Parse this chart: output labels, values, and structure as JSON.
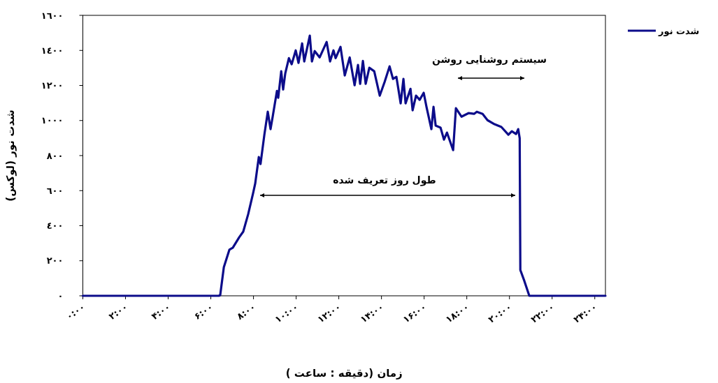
{
  "chart_data": {
    "type": "line",
    "xlabel": "زمان (دقیقه : ساعت )",
    "ylabel": "شدت نور (لوکس)",
    "xlim": [
      0,
      24.5
    ],
    "ylim": [
      0,
      1600
    ],
    "xticks": [
      {
        "value": 0,
        "label": "۰:۰۰"
      },
      {
        "value": 2,
        "label": "۲:۰۰"
      },
      {
        "value": 4,
        "label": "۴:۰۰"
      },
      {
        "value": 6,
        "label": "۶:۰۰"
      },
      {
        "value": 8,
        "label": "۸:۰۰"
      },
      {
        "value": 10,
        "label": "۱۰:۰۰"
      },
      {
        "value": 12,
        "label": "۱۲:۰۰"
      },
      {
        "value": 14,
        "label": "۱۴:۰۰"
      },
      {
        "value": 16,
        "label": "۱۶:۰۰"
      },
      {
        "value": 18,
        "label": "۱۸:۰۰"
      },
      {
        "value": 20,
        "label": "۲۰:۰۰"
      },
      {
        "value": 22,
        "label": "۲۲:۰۰"
      },
      {
        "value": 24,
        "label": "۲۴:۰۰"
      }
    ],
    "yticks": [
      {
        "value": 0,
        "label": "٠"
      },
      {
        "value": 200,
        "label": "٢٠٠"
      },
      {
        "value": 400,
        "label": "٤٠٠"
      },
      {
        "value": 600,
        "label": "٦٠٠"
      },
      {
        "value": 800,
        "label": "٨٠٠"
      },
      {
        "value": 1000,
        "label": "١٠٠٠"
      },
      {
        "value": 1200,
        "label": "١٢٠٠"
      },
      {
        "value": 1400,
        "label": "١٤٠٠"
      },
      {
        "value": 1600,
        "label": "١٦٠٠"
      }
    ],
    "grid": false,
    "legend": "top right",
    "marker": "none",
    "line_style": "solid",
    "annotations": [
      "طول روز تعریف شده",
      "سیستم روشنایی روشن"
    ],
    "series": [
      {
        "name": "شدت نور",
        "color": "#0c0c8a",
        "x": [
          0,
          6.38,
          6.44,
          6.61,
          6.87,
          7.03,
          7.33,
          7.52,
          7.75,
          7.98,
          8.08,
          8.25,
          8.33,
          8.51,
          8.67,
          8.8,
          8.9,
          9.1,
          9.16,
          9.3,
          9.39,
          9.49,
          9.66,
          9.79,
          9.98,
          10.11,
          10.28,
          10.38,
          10.64,
          10.74,
          10.87,
          11.1,
          11.43,
          11.59,
          11.75,
          11.85,
          12.08,
          12.28,
          12.51,
          12.74,
          12.9,
          13.0,
          13.13,
          13.26,
          13.43,
          13.66,
          13.92,
          14.15,
          14.38,
          14.54,
          14.7,
          14.9,
          15.03,
          15.13,
          15.36,
          15.46,
          15.62,
          15.79,
          15.98,
          16.11,
          16.34,
          16.44,
          16.54,
          16.77,
          16.93,
          17.07,
          17.36,
          17.49,
          17.75,
          18.08,
          18.34,
          18.47,
          18.74,
          18.97,
          19.3,
          19.62,
          19.95,
          20.11,
          20.31,
          20.41,
          20.48,
          20.51,
          20.7,
          20.93,
          24.5
        ],
        "values": [
          0,
          0,
          4,
          163,
          263,
          274,
          334,
          366,
          465,
          585,
          640,
          792,
          752,
          919,
          1050,
          951,
          1022,
          1169,
          1130,
          1281,
          1177,
          1269,
          1356,
          1321,
          1400,
          1329,
          1440,
          1337,
          1484,
          1337,
          1396,
          1360,
          1448,
          1337,
          1400,
          1356,
          1420,
          1257,
          1360,
          1201,
          1317,
          1209,
          1340,
          1209,
          1301,
          1281,
          1142,
          1221,
          1309,
          1237,
          1249,
          1098,
          1237,
          1098,
          1181,
          1058,
          1142,
          1118,
          1158,
          1078,
          951,
          1078,
          971,
          959,
          891,
          931,
          831,
          1070,
          1022,
          1042,
          1038,
          1050,
          1038,
          1002,
          979,
          963,
          919,
          939,
          923,
          951,
          899,
          147,
          84,
          0,
          0
        ]
      }
    ]
  }
}
